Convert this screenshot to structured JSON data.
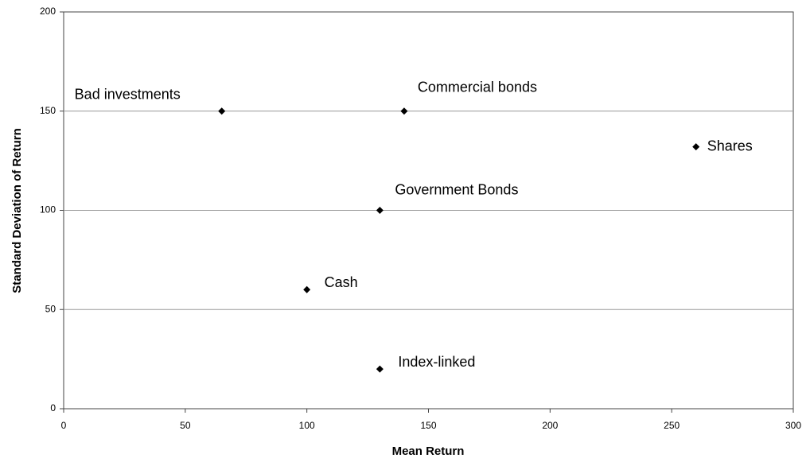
{
  "chart_data": {
    "type": "scatter",
    "x_label": "Mean Return",
    "y_label": "Standard Deviation of Return",
    "x": [
      65,
      140,
      260,
      130,
      100,
      130
    ],
    "y": [
      150,
      150,
      132,
      100,
      60,
      20
    ],
    "labels": [
      "Bad investments",
      "Commercial bonds",
      "Shares",
      "Government Bonds",
      "Cash",
      "Index-linked"
    ],
    "color": "#000000",
    "xlim": [
      0,
      300
    ],
    "xticks": [
      0,
      50,
      100,
      150,
      200,
      250,
      300
    ],
    "ylim": [
      0,
      200
    ],
    "yticks": [
      0,
      50,
      100,
      150,
      200
    ],
    "grid": true
  }
}
